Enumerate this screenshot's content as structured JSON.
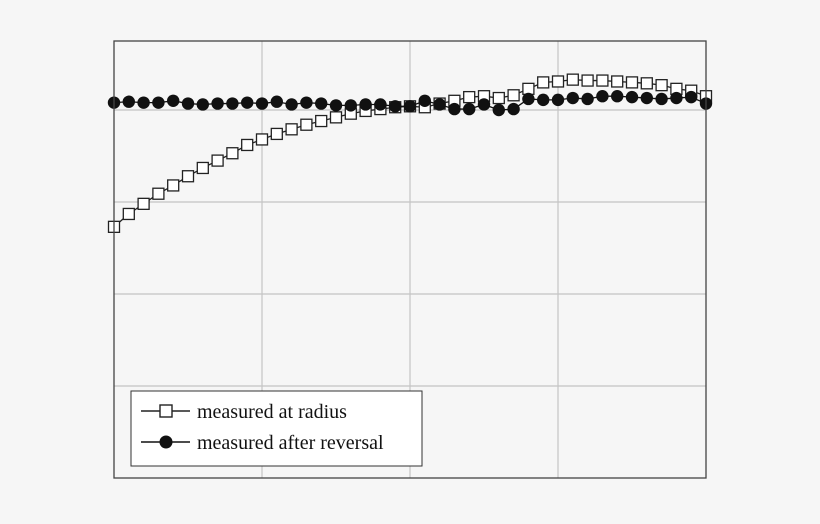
{
  "chart_data": {
    "type": "line",
    "grid": true,
    "legend_position": "bottom-left",
    "xlim": [
      0,
      8
    ],
    "ylim": [
      0,
      4.75
    ],
    "x_gridlines": [
      2,
      4,
      6
    ],
    "y_gridlines": [
      1,
      2,
      3,
      4
    ],
    "series": [
      {
        "name": "measured at radius",
        "marker": "open-square",
        "color": "#222222",
        "points": [
          [
            0.0,
            2.73
          ],
          [
            0.2,
            2.87
          ],
          [
            0.4,
            2.98
          ],
          [
            0.6,
            3.09
          ],
          [
            0.8,
            3.18
          ],
          [
            1.0,
            3.28
          ],
          [
            1.2,
            3.37
          ],
          [
            1.4,
            3.45
          ],
          [
            1.6,
            3.53
          ],
          [
            1.8,
            3.62
          ],
          [
            2.0,
            3.68
          ],
          [
            2.2,
            3.74
          ],
          [
            2.4,
            3.79
          ],
          [
            2.6,
            3.84
          ],
          [
            2.8,
            3.88
          ],
          [
            3.0,
            3.92
          ],
          [
            3.2,
            3.96
          ],
          [
            3.4,
            3.99
          ],
          [
            3.6,
            4.01
          ],
          [
            3.8,
            4.03
          ],
          [
            4.0,
            4.04
          ],
          [
            4.2,
            4.03
          ],
          [
            4.4,
            4.07
          ],
          [
            4.6,
            4.1
          ],
          [
            4.8,
            4.14
          ],
          [
            5.0,
            4.15
          ],
          [
            5.2,
            4.13
          ],
          [
            5.4,
            4.16
          ],
          [
            5.6,
            4.23
          ],
          [
            5.8,
            4.3
          ],
          [
            6.0,
            4.31
          ],
          [
            6.2,
            4.33
          ],
          [
            6.4,
            4.32
          ],
          [
            6.6,
            4.32
          ],
          [
            6.8,
            4.31
          ],
          [
            7.0,
            4.3
          ],
          [
            7.2,
            4.29
          ],
          [
            7.4,
            4.27
          ],
          [
            7.6,
            4.23
          ],
          [
            7.8,
            4.21
          ],
          [
            8.0,
            4.15
          ]
        ]
      },
      {
        "name": "measured after reversal",
        "marker": "filled-circle",
        "color": "#111111",
        "points": [
          [
            0.0,
            4.08
          ],
          [
            0.2,
            4.09
          ],
          [
            0.4,
            4.08
          ],
          [
            0.6,
            4.08
          ],
          [
            0.8,
            4.1
          ],
          [
            1.0,
            4.07
          ],
          [
            1.2,
            4.06
          ],
          [
            1.4,
            4.07
          ],
          [
            1.6,
            4.07
          ],
          [
            1.8,
            4.08
          ],
          [
            2.0,
            4.07
          ],
          [
            2.2,
            4.09
          ],
          [
            2.4,
            4.06
          ],
          [
            2.6,
            4.08
          ],
          [
            2.8,
            4.07
          ],
          [
            3.0,
            4.05
          ],
          [
            3.2,
            4.05
          ],
          [
            3.4,
            4.06
          ],
          [
            3.6,
            4.06
          ],
          [
            3.8,
            4.04
          ],
          [
            4.0,
            4.04
          ],
          [
            4.2,
            4.1
          ],
          [
            4.4,
            4.06
          ],
          [
            4.6,
            4.01
          ],
          [
            4.8,
            4.01
          ],
          [
            5.0,
            4.06
          ],
          [
            5.2,
            4.0
          ],
          [
            5.4,
            4.01
          ],
          [
            5.6,
            4.12
          ],
          [
            5.8,
            4.11
          ],
          [
            6.0,
            4.11
          ],
          [
            6.2,
            4.13
          ],
          [
            6.4,
            4.12
          ],
          [
            6.6,
            4.15
          ],
          [
            6.8,
            4.15
          ],
          [
            7.0,
            4.14
          ],
          [
            7.2,
            4.13
          ],
          [
            7.4,
            4.12
          ],
          [
            7.6,
            4.13
          ],
          [
            7.8,
            4.14
          ],
          [
            8.0,
            4.07
          ]
        ]
      }
    ],
    "legend": {
      "entries": [
        "measured at radius",
        "measured after reversal"
      ]
    }
  }
}
